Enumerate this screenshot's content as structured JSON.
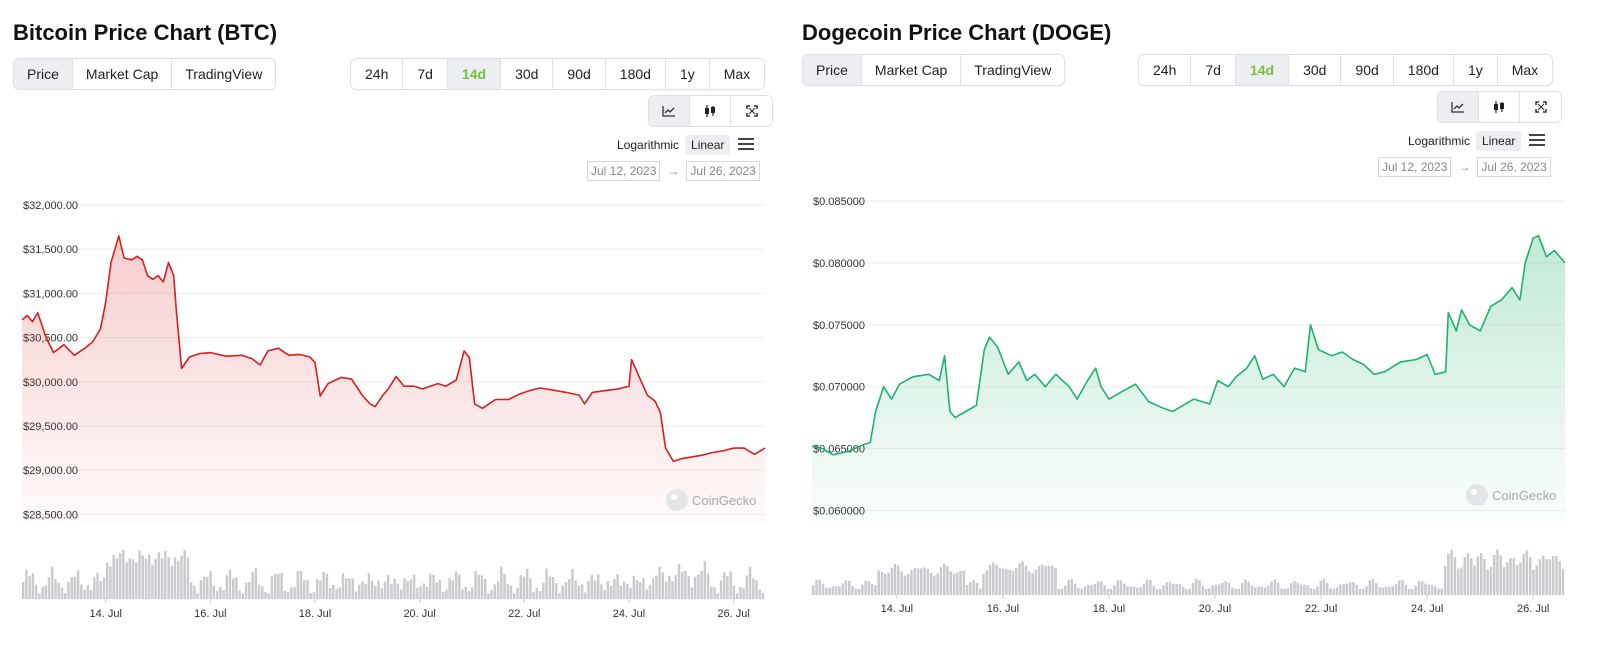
{
  "panels": [
    {
      "title": "Bitcoin Price Chart (BTC)",
      "view_tabs": [
        "Price",
        "Market Cap",
        "TradingView"
      ],
      "range_tabs": [
        "24h",
        "7d",
        "14d",
        "30d",
        "90d",
        "180d",
        "1y",
        "Max"
      ],
      "selected_range": "14d",
      "scale_options": [
        "Logarithmic",
        "Linear"
      ],
      "selected_scale": "Linear",
      "date_from": "Jul 12, 2023",
      "date_to": "Jul 26, 2023",
      "watermark": "CoinGecko"
    },
    {
      "title": "Dogecoin Price Chart (DOGE)",
      "view_tabs": [
        "Price",
        "Market Cap",
        "TradingView"
      ],
      "range_tabs": [
        "24h",
        "7d",
        "14d",
        "30d",
        "90d",
        "180d",
        "1y",
        "Max"
      ],
      "selected_range": "14d",
      "scale_options": [
        "Logarithmic",
        "Linear"
      ],
      "selected_scale": "Linear",
      "date_from": "Jul 12, 2023",
      "date_to": "Jul 26, 2023",
      "watermark": "CoinGecko"
    }
  ],
  "colors": {
    "btc_line": "#d81e1e",
    "doge_line": "#1fb26b",
    "active_range": "#75c13f",
    "volume": "#c8cace"
  },
  "icons": [
    "line-chart-icon",
    "candlestick-icon",
    "expand-icon",
    "hamburger-menu-icon",
    "coingecko-logo-icon"
  ],
  "chart_data": [
    {
      "type": "area",
      "title": "Bitcoin Price Chart (BTC)",
      "y_tick_labels": [
        "$32,000.00",
        "$31,500.00",
        "$31,000.00",
        "$30,500.00",
        "$30,000.00",
        "$29,500.00",
        "$29,000.00",
        "$28,500.00"
      ],
      "ylim": [
        28500,
        32000
      ],
      "x_tick_labels": [
        "14. Jul",
        "16. Jul",
        "18. Jul",
        "20. Jul",
        "22. Jul",
        "24. Jul",
        "26. Jul"
      ],
      "xlim": [
        12.4,
        26.6
      ],
      "series": [
        {
          "points": [
            [
              12.4,
              30700
            ],
            [
              12.5,
              30750
            ],
            [
              12.6,
              30680
            ],
            [
              12.7,
              30780
            ],
            [
              12.85,
              30520
            ],
            [
              13.0,
              30330
            ],
            [
              13.2,
              30420
            ],
            [
              13.4,
              30300
            ],
            [
              13.6,
              30380
            ],
            [
              13.75,
              30450
            ],
            [
              13.9,
              30600
            ],
            [
              14.0,
              30900
            ],
            [
              14.1,
              31350
            ],
            [
              14.2,
              31550
            ],
            [
              14.25,
              31650
            ],
            [
              14.35,
              31400
            ],
            [
              14.5,
              31380
            ],
            [
              14.6,
              31420
            ],
            [
              14.7,
              31380
            ],
            [
              14.8,
              31200
            ],
            [
              14.9,
              31160
            ],
            [
              15.0,
              31200
            ],
            [
              15.1,
              31130
            ],
            [
              15.2,
              31350
            ],
            [
              15.3,
              31200
            ],
            [
              15.35,
              30800
            ],
            [
              15.45,
              30150
            ],
            [
              15.6,
              30280
            ],
            [
              15.8,
              30320
            ],
            [
              16.0,
              30330
            ],
            [
              16.3,
              30290
            ],
            [
              16.6,
              30300
            ],
            [
              16.8,
              30260
            ],
            [
              16.95,
              30190
            ],
            [
              17.1,
              30350
            ],
            [
              17.3,
              30380
            ],
            [
              17.5,
              30300
            ],
            [
              17.7,
              30310
            ],
            [
              17.9,
              30280
            ],
            [
              18.0,
              30220
            ],
            [
              18.1,
              29840
            ],
            [
              18.25,
              29980
            ],
            [
              18.5,
              30050
            ],
            [
              18.7,
              30030
            ],
            [
              18.9,
              29850
            ],
            [
              19.05,
              29750
            ],
            [
              19.15,
              29720
            ],
            [
              19.3,
              29850
            ],
            [
              19.4,
              29920
            ],
            [
              19.55,
              30060
            ],
            [
              19.7,
              29950
            ],
            [
              19.9,
              29950
            ],
            [
              20.05,
              29920
            ],
            [
              20.2,
              29950
            ],
            [
              20.35,
              29980
            ],
            [
              20.5,
              29950
            ],
            [
              20.7,
              30020
            ],
            [
              20.85,
              30350
            ],
            [
              20.95,
              30270
            ],
            [
              21.05,
              29750
            ],
            [
              21.2,
              29700
            ],
            [
              21.45,
              29800
            ],
            [
              21.7,
              29800
            ],
            [
              21.9,
              29860
            ],
            [
              22.1,
              29900
            ],
            [
              22.3,
              29930
            ],
            [
              22.6,
              29900
            ],
            [
              22.8,
              29880
            ],
            [
              23.05,
              29850
            ],
            [
              23.15,
              29750
            ],
            [
              23.3,
              29880
            ],
            [
              23.55,
              29900
            ],
            [
              23.8,
              29920
            ],
            [
              24.0,
              29950
            ],
            [
              24.05,
              30250
            ],
            [
              24.2,
              30050
            ],
            [
              24.35,
              29850
            ],
            [
              24.5,
              29780
            ],
            [
              24.6,
              29650
            ],
            [
              24.7,
              29250
            ],
            [
              24.85,
              29100
            ],
            [
              25.0,
              29130
            ],
            [
              25.2,
              29150
            ],
            [
              25.4,
              29170
            ],
            [
              25.6,
              29200
            ],
            [
              25.8,
              29220
            ],
            [
              26.0,
              29250
            ],
            [
              26.2,
              29250
            ],
            [
              26.4,
              29180
            ],
            [
              26.6,
              29250
            ]
          ]
        }
      ],
      "volume_series": true,
      "color": "#d81e1e"
    },
    {
      "type": "area",
      "title": "Dogecoin Price Chart (DOGE)",
      "y_tick_labels": [
        "$0.085000",
        "$0.080000",
        "$0.075000",
        "$0.070000",
        "$0.065000",
        "$0.060000"
      ],
      "ylim": [
        0.06,
        0.085
      ],
      "x_tick_labels": [
        "14. Jul",
        "16. Jul",
        "18. Jul",
        "20. Jul",
        "22. Jul",
        "24. Jul",
        "26. Jul"
      ],
      "xlim": [
        12.4,
        26.6
      ],
      "series": [
        {
          "points": [
            [
              12.4,
              0.0652
            ],
            [
              12.6,
              0.065
            ],
            [
              12.8,
              0.0645
            ],
            [
              13.1,
              0.0648
            ],
            [
              13.3,
              0.0652
            ],
            [
              13.5,
              0.0655
            ],
            [
              13.6,
              0.068
            ],
            [
              13.75,
              0.07
            ],
            [
              13.9,
              0.069
            ],
            [
              14.05,
              0.0702
            ],
            [
              14.3,
              0.0708
            ],
            [
              14.6,
              0.071
            ],
            [
              14.8,
              0.0705
            ],
            [
              14.9,
              0.0725
            ],
            [
              15.0,
              0.068
            ],
            [
              15.1,
              0.0675
            ],
            [
              15.3,
              0.068
            ],
            [
              15.5,
              0.0685
            ],
            [
              15.65,
              0.073
            ],
            [
              15.75,
              0.074
            ],
            [
              15.9,
              0.0732
            ],
            [
              16.1,
              0.071
            ],
            [
              16.3,
              0.072
            ],
            [
              16.45,
              0.0705
            ],
            [
              16.6,
              0.071
            ],
            [
              16.8,
              0.07
            ],
            [
              17.0,
              0.071
            ],
            [
              17.25,
              0.07
            ],
            [
              17.4,
              0.069
            ],
            [
              17.6,
              0.0705
            ],
            [
              17.75,
              0.0715
            ],
            [
              17.85,
              0.07
            ],
            [
              18.0,
              0.069
            ],
            [
              18.2,
              0.0695
            ],
            [
              18.5,
              0.0702
            ],
            [
              18.75,
              0.0688
            ],
            [
              19.0,
              0.0683
            ],
            [
              19.2,
              0.068
            ],
            [
              19.4,
              0.0685
            ],
            [
              19.6,
              0.069
            ],
            [
              19.9,
              0.0686
            ],
            [
              20.05,
              0.0705
            ],
            [
              20.25,
              0.07
            ],
            [
              20.4,
              0.0708
            ],
            [
              20.6,
              0.0715
            ],
            [
              20.75,
              0.0725
            ],
            [
              20.9,
              0.0706
            ],
            [
              21.1,
              0.071
            ],
            [
              21.3,
              0.07
            ],
            [
              21.5,
              0.0715
            ],
            [
              21.7,
              0.0712
            ],
            [
              21.8,
              0.075
            ],
            [
              21.95,
              0.073
            ],
            [
              22.2,
              0.0725
            ],
            [
              22.4,
              0.0728
            ],
            [
              22.6,
              0.0722
            ],
            [
              22.8,
              0.0718
            ],
            [
              23.0,
              0.071
            ],
            [
              23.2,
              0.0712
            ],
            [
              23.5,
              0.072
            ],
            [
              23.8,
              0.0722
            ],
            [
              24.0,
              0.0726
            ],
            [
              24.15,
              0.071
            ],
            [
              24.35,
              0.0712
            ],
            [
              24.4,
              0.076
            ],
            [
              24.55,
              0.0745
            ],
            [
              24.65,
              0.0762
            ],
            [
              24.8,
              0.075
            ],
            [
              25.0,
              0.0745
            ],
            [
              25.2,
              0.0765
            ],
            [
              25.4,
              0.077
            ],
            [
              25.6,
              0.078
            ],
            [
              25.75,
              0.077
            ],
            [
              25.85,
              0.08
            ],
            [
              26.0,
              0.082
            ],
            [
              26.1,
              0.0822
            ],
            [
              26.25,
              0.0805
            ],
            [
              26.4,
              0.081
            ],
            [
              26.6,
              0.08
            ]
          ]
        }
      ],
      "volume_series": true,
      "color": "#1fb26b"
    }
  ]
}
